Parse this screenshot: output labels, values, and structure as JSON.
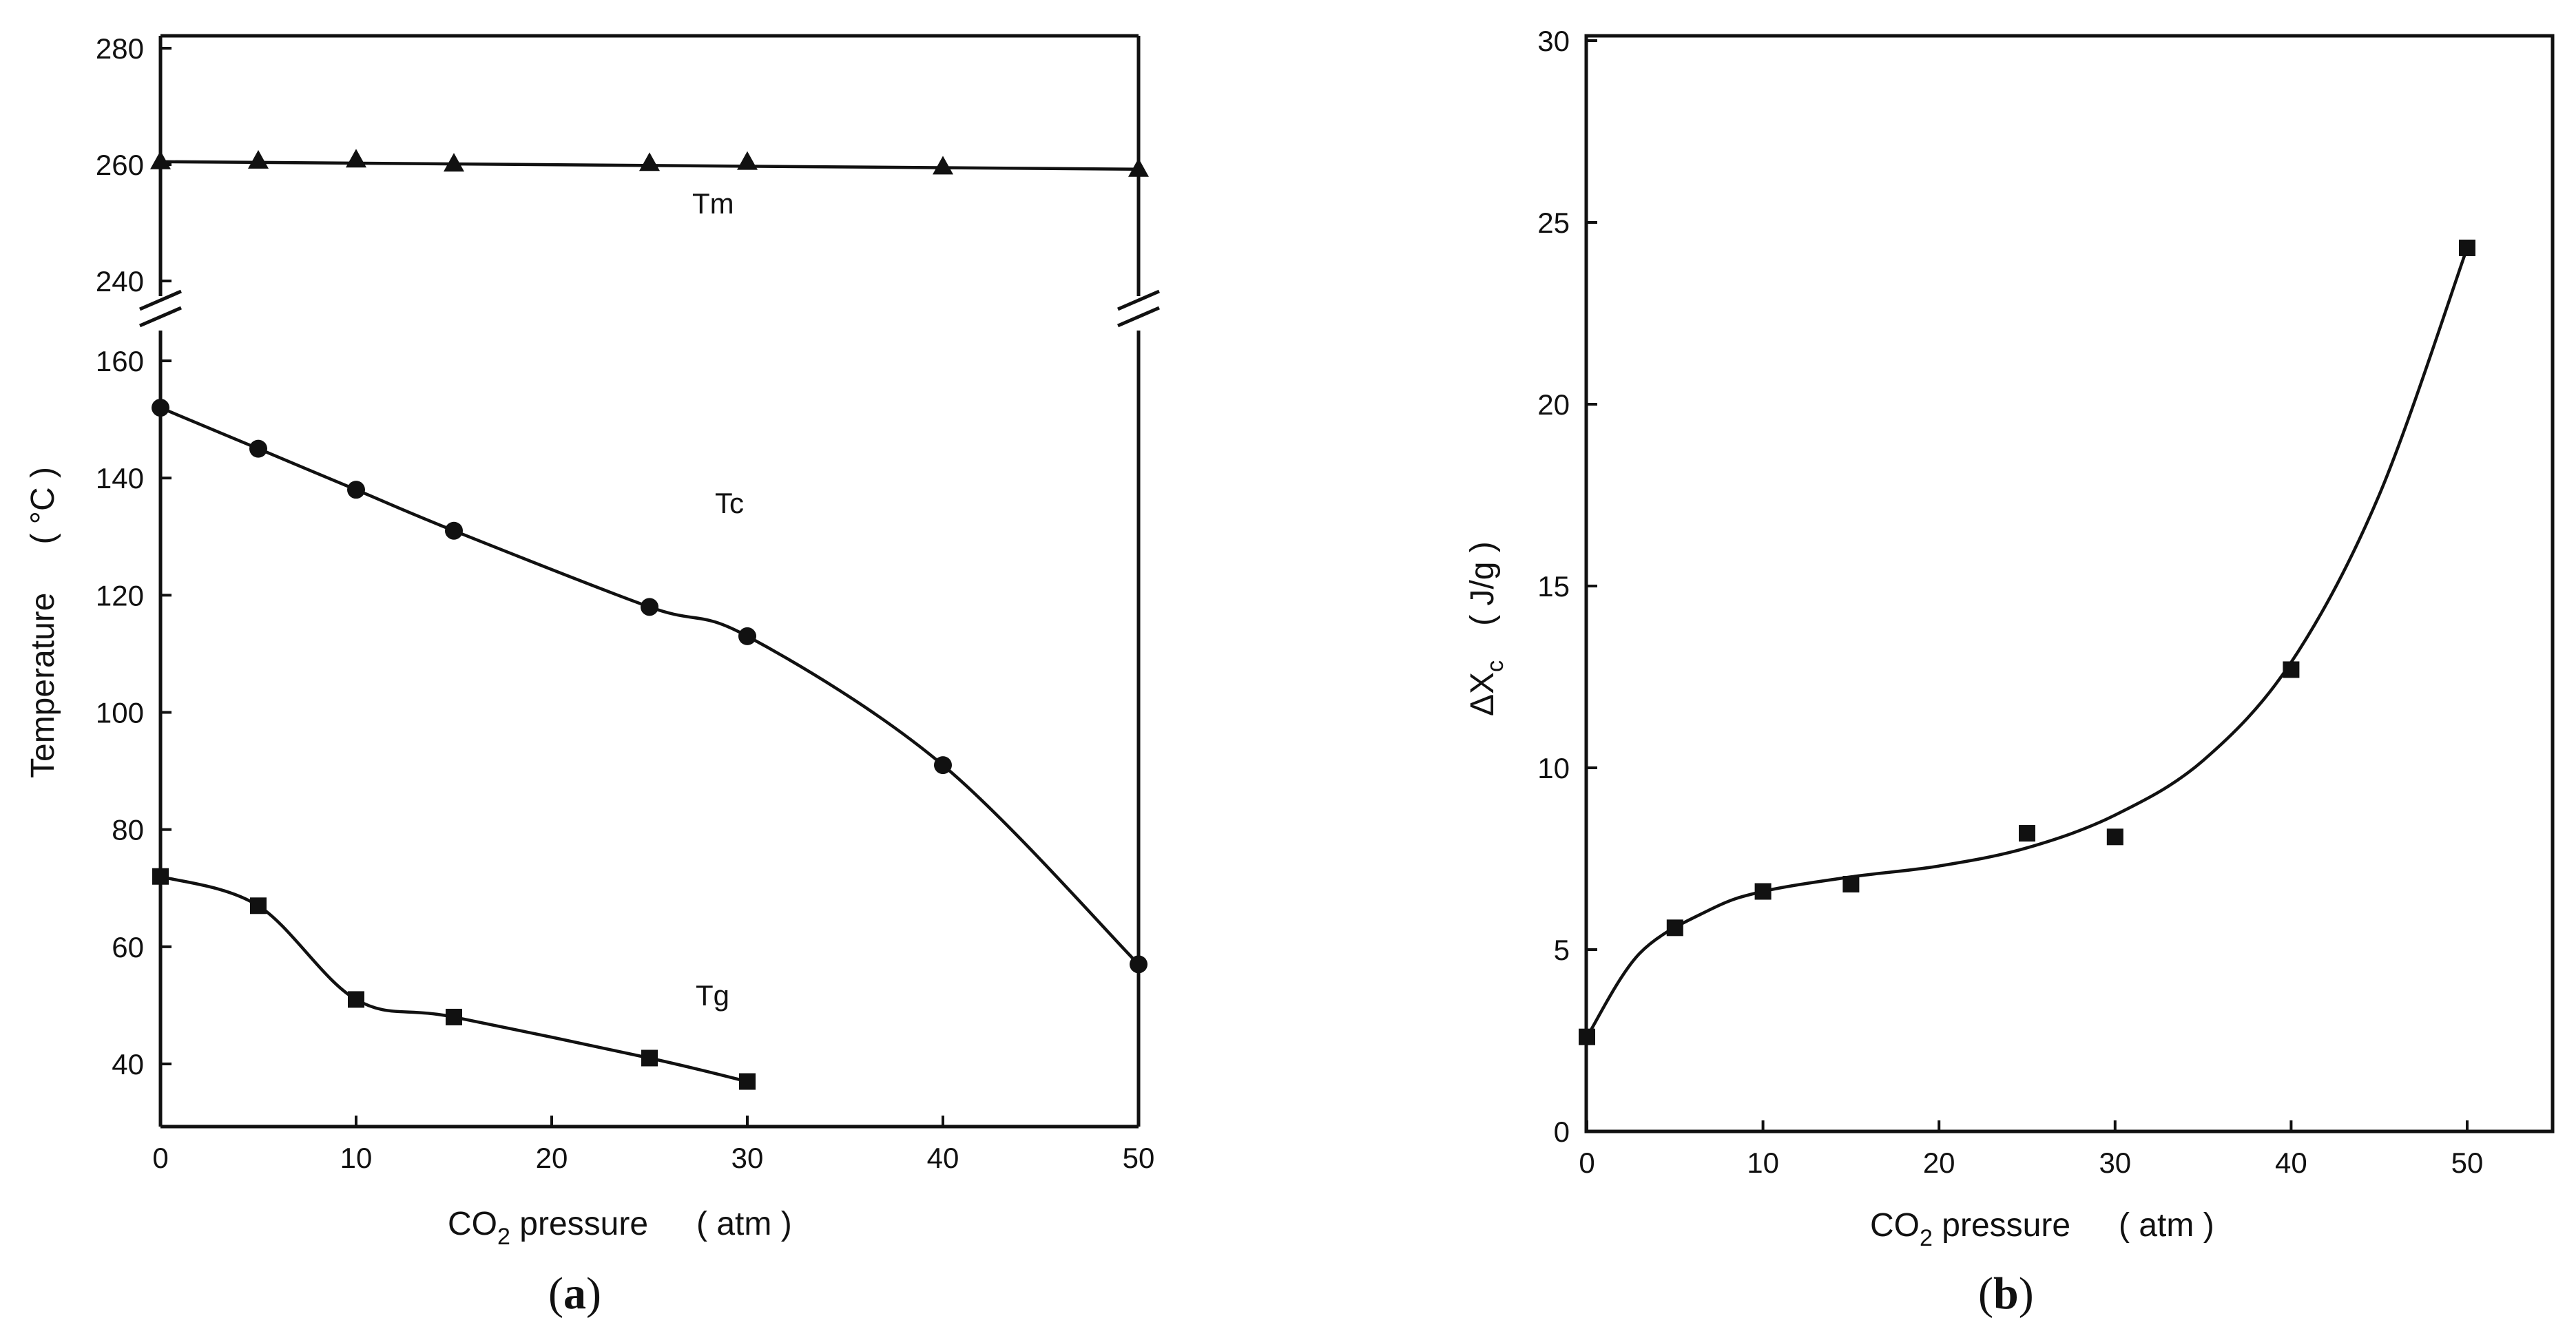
{
  "chart_data": [
    {
      "id": "a",
      "type": "line",
      "panel_label": "a",
      "xlabel": {
        "main": "CO",
        "sub": "2",
        "rest": " pressure",
        "unit": "( atm )"
      },
      "ylabel": {
        "main": "Temperature",
        "unit": "( °C )"
      },
      "x_ticks": [
        "0",
        "10",
        "20",
        "30",
        "40",
        "50"
      ],
      "xlim": [
        0,
        50
      ],
      "y_ticks_lower": [
        "40",
        "60",
        "80",
        "100",
        "120",
        "140",
        "160"
      ],
      "y_ticks_upper": [
        "240",
        "260",
        "280"
      ],
      "ylim_lower": [
        30,
        165
      ],
      "ylim_upper": [
        235,
        282
      ],
      "series": [
        {
          "name": "Tm",
          "marker": "triangle",
          "segment": "upper",
          "x": [
            0,
            5,
            10,
            15,
            25,
            30,
            40,
            50
          ],
          "values": [
            260.5,
            260.6,
            260.8,
            260.1,
            260.2,
            260.4,
            259.6,
            259.2
          ]
        },
        {
          "name": "Tc",
          "marker": "circle",
          "segment": "lower",
          "x": [
            0,
            5,
            10,
            15,
            25,
            30,
            40,
            50
          ],
          "values": [
            152,
            145,
            138,
            131,
            118,
            113,
            91,
            57
          ]
        },
        {
          "name": "Tg",
          "marker": "square",
          "segment": "lower",
          "x": [
            0,
            5,
            10,
            15,
            25,
            30
          ],
          "values": [
            72,
            67,
            51,
            48,
            41,
            37
          ]
        }
      ]
    },
    {
      "id": "b",
      "type": "line",
      "panel_label": "b",
      "xlabel": {
        "main": "CO",
        "sub": "2",
        "rest": " pressure",
        "unit": "( atm )"
      },
      "ylabel": {
        "main": "ΔX",
        "sub": "c",
        "unit": "( J/g )"
      },
      "x_ticks": [
        "0",
        "10",
        "20",
        "30",
        "40",
        "50"
      ],
      "xlim": [
        0,
        55
      ],
      "y_ticks": [
        "0",
        "5",
        "10",
        "15",
        "20",
        "25",
        "30"
      ],
      "ylim": [
        0,
        30
      ],
      "series": [
        {
          "name": "ΔXc",
          "marker": "square",
          "x": [
            0,
            5,
            10,
            15,
            25,
            30,
            40,
            50
          ],
          "values": [
            2.6,
            5.6,
            6.6,
            6.8,
            8.2,
            8.1,
            12.7,
            24.3
          ]
        }
      ]
    }
  ]
}
